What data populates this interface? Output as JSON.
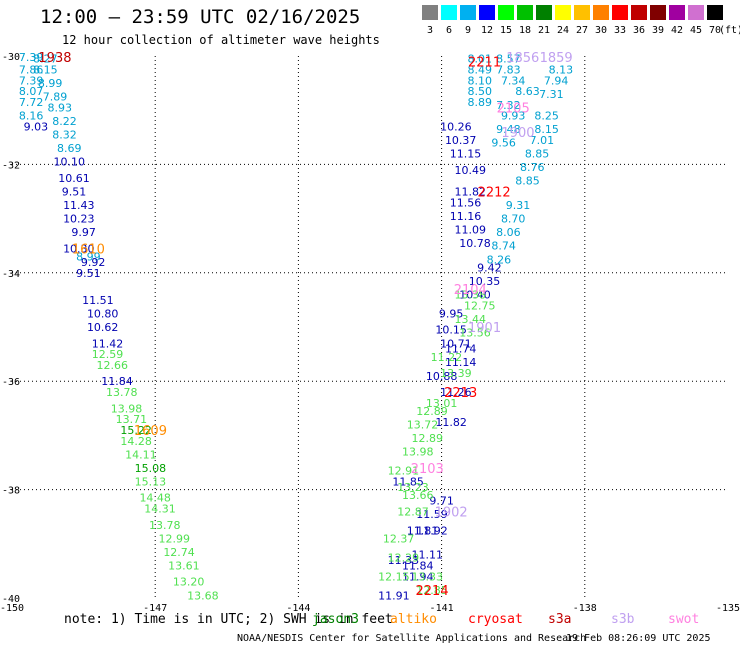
{
  "header": {
    "title": "12:00 — 23:59 UTC 02/16/2025",
    "subtitle": "12 hour collection of altimeter wave heights"
  },
  "color_scale": {
    "unit_label": "(ft)",
    "bins": [
      {
        "label": "3",
        "color": "#808080"
      },
      {
        "label": "6",
        "color": "#00ffff"
      },
      {
        "label": "9",
        "color": "#00b0f0"
      },
      {
        "label": "12",
        "color": "#0000ff"
      },
      {
        "label": "15",
        "color": "#00ff00"
      },
      {
        "label": "18",
        "color": "#00c000"
      },
      {
        "label": "21",
        "color": "#008000"
      },
      {
        "label": "24",
        "color": "#ffff00"
      },
      {
        "label": "27",
        "color": "#ffc000"
      },
      {
        "label": "30",
        "color": "#ff8000"
      },
      {
        "label": "33",
        "color": "#ff0000"
      },
      {
        "label": "36",
        "color": "#c00000"
      },
      {
        "label": "39",
        "color": "#800000"
      },
      {
        "label": "42",
        "color": "#a000a0"
      },
      {
        "label": "45",
        "color": "#d070d0"
      },
      {
        "label": "70",
        "color": "#000000"
      }
    ]
  },
  "chart_data": {
    "type": "scatter",
    "title": "12:00 — 23:59 UTC 02/16/2025",
    "xlim": [
      -150,
      -135
    ],
    "ylim": [
      -40,
      -30
    ],
    "x_ticks": [
      -150,
      -147,
      -144,
      -141,
      -138,
      -135
    ],
    "y_ticks": [
      -30,
      -32,
      -34,
      -36,
      -38,
      -40
    ],
    "x_tick_labels": [
      "-150",
      "-147",
      "-144",
      "-141",
      "-138",
      "-135"
    ],
    "y_tick_labels": [
      "-30",
      "-32",
      "-34",
      "-36",
      "-38",
      "-40"
    ],
    "grid": true,
    "series": [
      {
        "color": "#00a0d0",
        "points": [
          {
            "x": -149.6,
            "y": -30.02,
            "label": "7.39"
          },
          {
            "x": -149.6,
            "y": -30.25,
            "label": "7.86"
          },
          {
            "x": -149.6,
            "y": -30.45,
            "label": "7.39"
          },
          {
            "x": -149.6,
            "y": -30.65,
            "label": "8.07"
          },
          {
            "x": -149.6,
            "y": -30.85,
            "label": "7.72"
          },
          {
            "x": -149.6,
            "y": -31.1,
            "label": "8.16"
          },
          {
            "x": -149.3,
            "y": -30.05,
            "label": "8.27"
          },
          {
            "x": -149.3,
            "y": -30.25,
            "label": "8.15"
          },
          {
            "x": -149.2,
            "y": -30.5,
            "label": "8.99"
          },
          {
            "x": -149.1,
            "y": -30.75,
            "label": "7.89"
          },
          {
            "x": -149.0,
            "y": -30.95,
            "label": "8.93"
          },
          {
            "x": -148.9,
            "y": -31.2,
            "label": "8.22"
          },
          {
            "x": -148.9,
            "y": -31.45,
            "label": "8.32"
          },
          {
            "x": -148.8,
            "y": -31.7,
            "label": "8.69"
          },
          {
            "x": -148.4,
            "y": -33.7,
            "label": "8.99"
          },
          {
            "x": -140.2,
            "y": -30.05,
            "label": "8.01"
          },
          {
            "x": -140.2,
            "y": -30.25,
            "label": "8.49"
          },
          {
            "x": -140.2,
            "y": -30.45,
            "label": "8.10"
          },
          {
            "x": -140.2,
            "y": -30.65,
            "label": "8.50"
          },
          {
            "x": -140.2,
            "y": -30.85,
            "label": "8.89"
          },
          {
            "x": -139.6,
            "y": -30.05,
            "label": "8.57"
          },
          {
            "x": -139.6,
            "y": -30.25,
            "label": "7.83"
          },
          {
            "x": -139.5,
            "y": -30.45,
            "label": "7.34"
          },
          {
            "x": -139.2,
            "y": -30.65,
            "label": "8.63"
          },
          {
            "x": -139.6,
            "y": -30.9,
            "label": "7.32"
          },
          {
            "x": -139.5,
            "y": -31.1,
            "label": "9.93"
          },
          {
            "x": -139.6,
            "y": -31.35,
            "label": "9.48"
          },
          {
            "x": -139.7,
            "y": -31.6,
            "label": "9.56"
          },
          {
            "x": -138.5,
            "y": -30.25,
            "label": "8.13"
          },
          {
            "x": -138.6,
            "y": -30.45,
            "label": "7.94"
          },
          {
            "x": -138.7,
            "y": -30.7,
            "label": "7.31"
          },
          {
            "x": -138.8,
            "y": -31.1,
            "label": "8.25"
          },
          {
            "x": -138.8,
            "y": -31.35,
            "label": "8.15"
          },
          {
            "x": -138.9,
            "y": -31.55,
            "label": "7.01"
          },
          {
            "x": -139.0,
            "y": -31.8,
            "label": "8.85"
          },
          {
            "x": -139.1,
            "y": -32.05,
            "label": "8.76"
          },
          {
            "x": -139.2,
            "y": -32.3,
            "label": "8.85"
          },
          {
            "x": -139.4,
            "y": -32.75,
            "label": "9.31"
          },
          {
            "x": -139.5,
            "y": -33.0,
            "label": "8.70"
          },
          {
            "x": -139.6,
            "y": -33.25,
            "label": "8.06"
          },
          {
            "x": -139.7,
            "y": -33.5,
            "label": "8.74"
          },
          {
            "x": -139.8,
            "y": -33.75,
            "label": "8.26"
          }
        ]
      },
      {
        "color": "#0000b0",
        "points": [
          {
            "x": -149.5,
            "y": -31.3,
            "label": "9.03"
          },
          {
            "x": -148.8,
            "y": -31.95,
            "label": "10.10"
          },
          {
            "x": -148.7,
            "y": -32.25,
            "label": "10.61"
          },
          {
            "x": -148.7,
            "y": -32.5,
            "label": "9.51"
          },
          {
            "x": -148.6,
            "y": -32.75,
            "label": "11.43"
          },
          {
            "x": -148.6,
            "y": -33.0,
            "label": "10.23"
          },
          {
            "x": -148.5,
            "y": -33.25,
            "label": "9.97"
          },
          {
            "x": -148.6,
            "y": -33.55,
            "label": "10.30"
          },
          {
            "x": -148.3,
            "y": -33.8,
            "label": "9.92"
          },
          {
            "x": -148.4,
            "y": -34.0,
            "label": "9.51"
          },
          {
            "x": -148.2,
            "y": -34.5,
            "label": "11.51"
          },
          {
            "x": -148.1,
            "y": -34.75,
            "label": "10.80"
          },
          {
            "x": -148.1,
            "y": -35.0,
            "label": "10.62"
          },
          {
            "x": -148.0,
            "y": -35.3,
            "label": "11.42"
          },
          {
            "x": -147.8,
            "y": -36.0,
            "label": "11.84"
          },
          {
            "x": -140.7,
            "y": -31.3,
            "label": "10.26"
          },
          {
            "x": -140.6,
            "y": -31.55,
            "label": "10.37"
          },
          {
            "x": -140.5,
            "y": -31.8,
            "label": "11.15"
          },
          {
            "x": -140.4,
            "y": -32.1,
            "label": "10.49"
          },
          {
            "x": -140.4,
            "y": -32.5,
            "label": "11.82"
          },
          {
            "x": -140.5,
            "y": -32.7,
            "label": "11.56"
          },
          {
            "x": -140.5,
            "y": -32.95,
            "label": "11.16"
          },
          {
            "x": -140.4,
            "y": -33.2,
            "label": "11.09"
          },
          {
            "x": -140.3,
            "y": -33.45,
            "label": "10.78"
          },
          {
            "x": -140.0,
            "y": -33.9,
            "label": "9.42"
          },
          {
            "x": -140.1,
            "y": -34.15,
            "label": "10.35"
          },
          {
            "x": -140.3,
            "y": -34.4,
            "label": "10.40"
          },
          {
            "x": -140.8,
            "y": -34.75,
            "label": "9.95"
          },
          {
            "x": -140.8,
            "y": -35.05,
            "label": "10.15"
          },
          {
            "x": -140.7,
            "y": -35.3,
            "label": "10.71"
          },
          {
            "x": -140.6,
            "y": -35.4,
            "label": "11.74"
          },
          {
            "x": -140.6,
            "y": -35.65,
            "label": "11.14"
          },
          {
            "x": -141.0,
            "y": -35.9,
            "label": "10.88"
          },
          {
            "x": -140.7,
            "y": -36.2,
            "label": "11.26"
          },
          {
            "x": -140.8,
            "y": -36.75,
            "label": "11.82"
          },
          {
            "x": -141.7,
            "y": -37.85,
            "label": "11.85"
          },
          {
            "x": -141.0,
            "y": -38.2,
            "label": "9.71"
          },
          {
            "x": -141.2,
            "y": -38.45,
            "label": "11.59"
          },
          {
            "x": -141.4,
            "y": -38.75,
            "label": "11.81"
          },
          {
            "x": -141.2,
            "y": -38.75,
            "label": "11.92"
          },
          {
            "x": -141.3,
            "y": -39.2,
            "label": "11.11"
          },
          {
            "x": -141.8,
            "y": -39.3,
            "label": "11.33"
          },
          {
            "x": -141.5,
            "y": -39.4,
            "label": "11.84"
          },
          {
            "x": -141.5,
            "y": -39.6,
            "label": "11.94"
          },
          {
            "x": -142.0,
            "y": -39.95,
            "label": "11.91"
          }
        ]
      },
      {
        "color": "#50e050",
        "points": [
          {
            "x": -148.0,
            "y": -35.5,
            "label": "12.59"
          },
          {
            "x": -147.9,
            "y": -35.7,
            "label": "12.66"
          },
          {
            "x": -147.7,
            "y": -36.2,
            "label": "13.78"
          },
          {
            "x": -147.6,
            "y": -36.5,
            "label": "13.98"
          },
          {
            "x": -147.5,
            "y": -36.7,
            "label": "13.71"
          },
          {
            "x": -147.4,
            "y": -37.1,
            "label": "14.28"
          },
          {
            "x": -147.3,
            "y": -37.35,
            "label": "14.11"
          },
          {
            "x": -147.1,
            "y": -37.85,
            "label": "15.13"
          },
          {
            "x": -147.0,
            "y": -38.15,
            "label": "14.48"
          },
          {
            "x": -146.9,
            "y": -38.35,
            "label": "14.31"
          },
          {
            "x": -146.8,
            "y": -38.65,
            "label": "13.78"
          },
          {
            "x": -146.6,
            "y": -38.9,
            "label": "12.99"
          },
          {
            "x": -146.5,
            "y": -39.15,
            "label": "12.74"
          },
          {
            "x": -146.4,
            "y": -39.4,
            "label": "13.61"
          },
          {
            "x": -146.3,
            "y": -39.7,
            "label": "13.20"
          },
          {
            "x": -146.0,
            "y": -39.95,
            "label": "13.68"
          },
          {
            "x": -140.4,
            "y": -34.4,
            "label": "13.38"
          },
          {
            "x": -140.2,
            "y": -34.6,
            "label": "12.75"
          },
          {
            "x": -140.4,
            "y": -34.85,
            "label": "13.44"
          },
          {
            "x": -140.3,
            "y": -35.1,
            "label": "13.56"
          },
          {
            "x": -140.9,
            "y": -35.55,
            "label": "11.22"
          },
          {
            "x": -140.7,
            "y": -35.85,
            "label": "13.39"
          },
          {
            "x": -141.0,
            "y": -36.4,
            "label": "13.01"
          },
          {
            "x": -141.2,
            "y": -36.55,
            "label": "12.89"
          },
          {
            "x": -141.4,
            "y": -36.8,
            "label": "13.72"
          },
          {
            "x": -141.3,
            "y": -37.05,
            "label": "12.89"
          },
          {
            "x": -141.5,
            "y": -37.3,
            "label": "13.98"
          },
          {
            "x": -141.8,
            "y": -37.65,
            "label": "12.91"
          },
          {
            "x": -141.6,
            "y": -37.95,
            "label": "13.23"
          },
          {
            "x": -141.5,
            "y": -38.1,
            "label": "13.66"
          },
          {
            "x": -141.6,
            "y": -38.4,
            "label": "12.87"
          },
          {
            "x": -141.9,
            "y": -38.9,
            "label": "12.37"
          },
          {
            "x": -141.8,
            "y": -39.25,
            "label": "12.29"
          },
          {
            "x": -142.0,
            "y": -39.6,
            "label": "12.15"
          },
          {
            "x": -141.2,
            "y": -39.85,
            "label": "12.85"
          },
          {
            "x": -141.3,
            "y": -39.6,
            "label": "13.33"
          }
        ]
      },
      {
        "color": "#00a000",
        "points": [
          {
            "x": -147.4,
            "y": -36.9,
            "label": "15.22"
          },
          {
            "x": -147.1,
            "y": -37.6,
            "label": "15.08"
          }
        ]
      }
    ],
    "annotations": [
      {
        "x": -149.1,
        "y": -30.02,
        "label": "1938",
        "color": "#c00000"
      },
      {
        "x": -148.4,
        "y": -33.55,
        "label": "1610",
        "color": "#ff8c00"
      },
      {
        "x": -147.1,
        "y": -36.9,
        "label": "1609",
        "color": "#ff8c00"
      },
      {
        "x": -140.1,
        "y": -30.1,
        "label": "2211",
        "color": "#ff0000"
      },
      {
        "x": -139.9,
        "y": -32.5,
        "label": "2212",
        "color": "#ff0000"
      },
      {
        "x": -140.6,
        "y": -36.2,
        "label": "2213",
        "color": "#ff0000"
      },
      {
        "x": -141.2,
        "y": -39.85,
        "label": "2214",
        "color": "#ff0000"
      },
      {
        "x": -139.3,
        "y": -30.02,
        "label": "1856",
        "color": "#c0a0f0"
      },
      {
        "x": -138.6,
        "y": -30.02,
        "label": "1859",
        "color": "#c0a0f0"
      },
      {
        "x": -139.4,
        "y": -31.4,
        "label": "1900",
        "color": "#c0a0f0"
      },
      {
        "x": -140.1,
        "y": -35.0,
        "label": "1901",
        "color": "#c0a0f0"
      },
      {
        "x": -140.8,
        "y": -38.4,
        "label": "1902",
        "color": "#c0a0f0"
      },
      {
        "x": -139.5,
        "y": -30.95,
        "label": "2105",
        "color": "#ff80e0"
      },
      {
        "x": -140.4,
        "y": -34.3,
        "label": "2104",
        "color": "#ff80e0"
      },
      {
        "x": -141.3,
        "y": -37.6,
        "label": "2103",
        "color": "#ff80e0"
      }
    ]
  },
  "note": {
    "text": "note: 1) Time is in UTC; 2) SWH is in feet",
    "missions": [
      {
        "name": "jason3",
        "color": "#008000"
      },
      {
        "name": "altiko",
        "color": "#ff8c00"
      },
      {
        "name": "cryosat",
        "color": "#ff0000"
      },
      {
        "name": "s3a",
        "color": "#c00000"
      },
      {
        "name": "s3b",
        "color": "#c0a0f0"
      },
      {
        "name": "swot",
        "color": "#ff80e0"
      }
    ]
  },
  "footer": {
    "credit": "NOAA/NESDIS Center for Satellite Applications and Research",
    "timestamp": "19 Feb 08:26:09 UTC 2025"
  }
}
